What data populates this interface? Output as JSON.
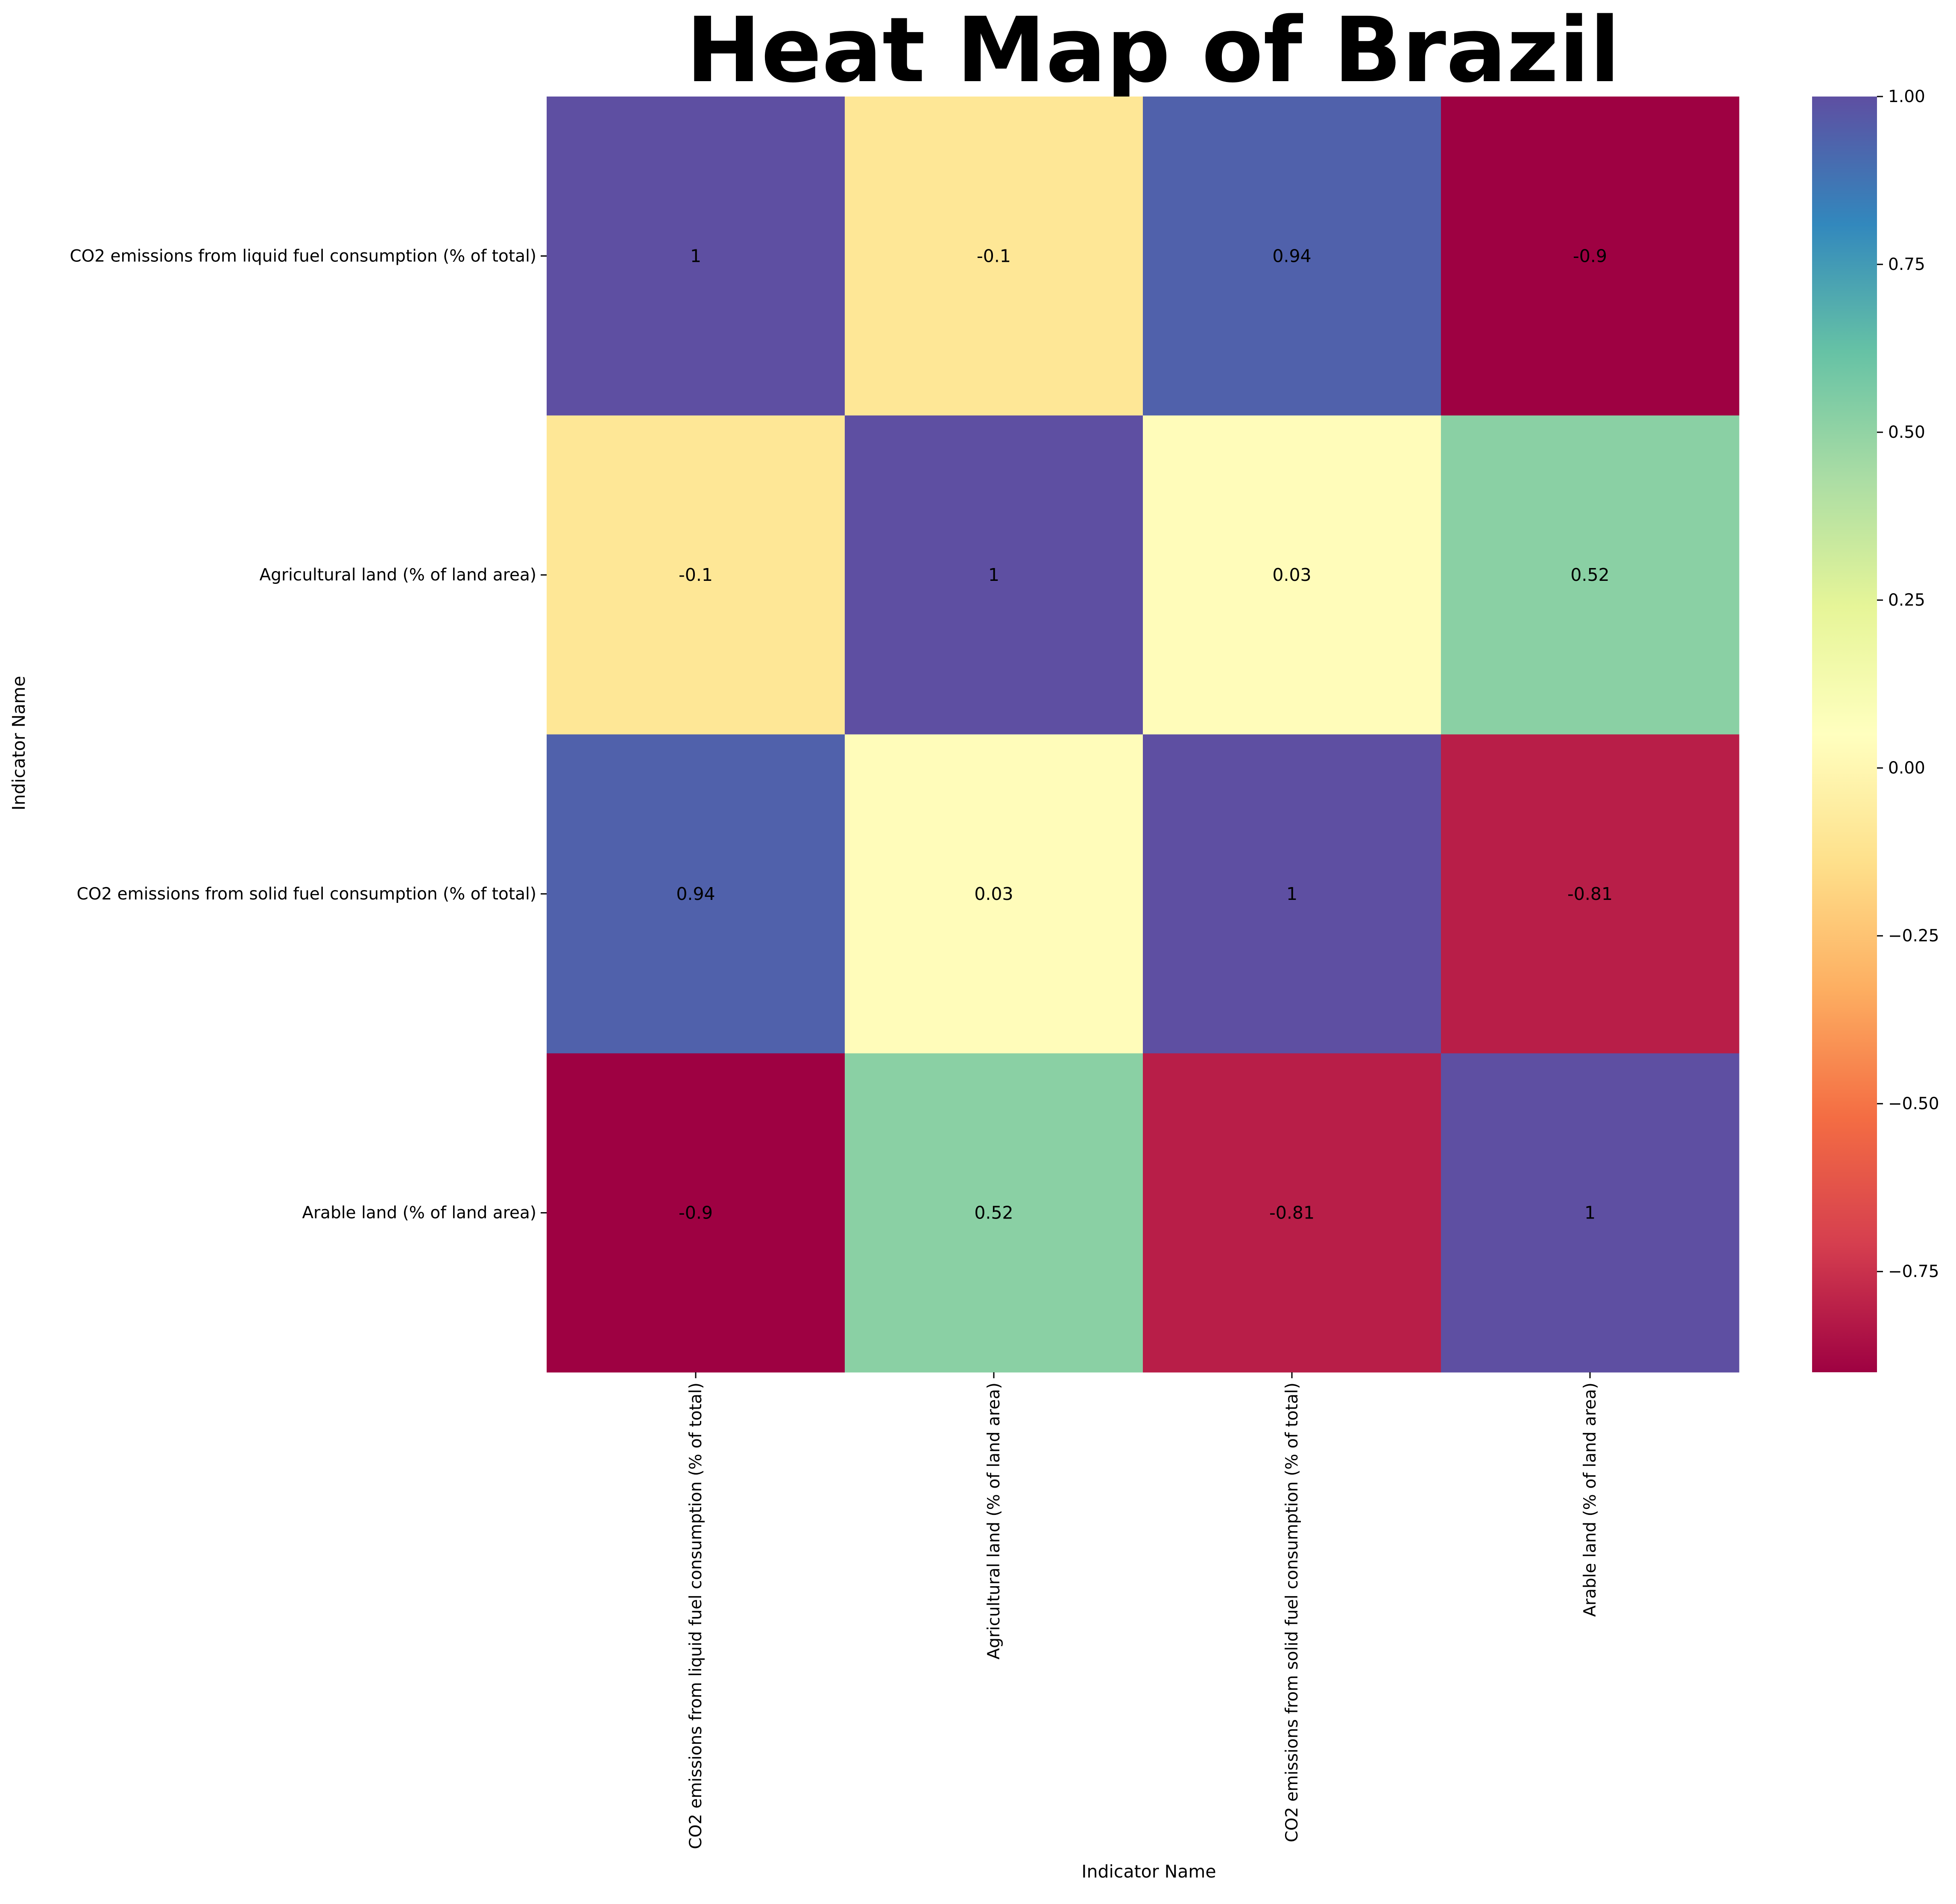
{
  "chart_data": {
    "type": "heatmap",
    "title": "Heat Map of Brazil",
    "xlabel": "Indicator Name",
    "ylabel": "Indicator Name",
    "categories": [
      "CO2 emissions from liquid fuel consumption (% of total)",
      "Agricultural land (% of land area)",
      "CO2 emissions from solid fuel consumption (% of total)",
      "Arable land (% of land area)"
    ],
    "matrix": [
      [
        1,
        -0.1,
        0.94,
        -0.9
      ],
      [
        -0.1,
        1,
        0.03,
        0.52
      ],
      [
        0.94,
        0.03,
        1,
        -0.81
      ],
      [
        -0.9,
        0.52,
        -0.81,
        1
      ]
    ],
    "annotations": [
      [
        "1",
        "-0.1",
        "0.94",
        "-0.9"
      ],
      [
        "-0.1",
        "1",
        "0.03",
        "0.52"
      ],
      [
        "0.94",
        "0.03",
        "1",
        "-0.81"
      ],
      [
        "-0.9",
        "0.52",
        "-0.81",
        "1"
      ]
    ],
    "colormap": "Spectral",
    "vmin": -0.9,
    "vmax": 1.0,
    "colorbar_ticks": [
      "1.00",
      "0.75",
      "0.50",
      "0.25",
      "0.00",
      "−0.25",
      "−0.50",
      "−0.75"
    ],
    "colorbar_tick_values": [
      1.0,
      0.75,
      0.5,
      0.25,
      0.0,
      -0.25,
      -0.5,
      -0.75
    ],
    "colors": {
      "spectral": [
        "#9e0142",
        "#d53e4f",
        "#f46d43",
        "#fdae61",
        "#fee08b",
        "#ffffbf",
        "#e6f598",
        "#abdda4",
        "#66c2a5",
        "#3288bd",
        "#5e4fa2"
      ]
    }
  }
}
